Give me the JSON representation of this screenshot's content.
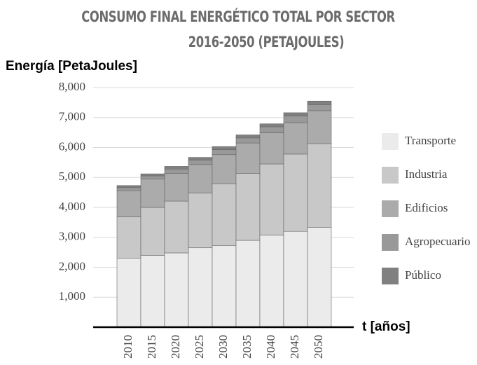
{
  "chart_data": {
    "type": "stacked_bar",
    "title": "CONSUMO FINAL ENERGÉTICO TOTAL POR SECTOR",
    "subtitle": "2016-2050 (PETAJOULES)",
    "y_label": "Energía [PetaJoules]",
    "x_label": "t [años]",
    "categories": [
      "2010",
      "2015",
      "2020",
      "2025",
      "2030",
      "2035",
      "2040",
      "2045",
      "2050"
    ],
    "series": [
      {
        "name": "Transporte",
        "color": "#ebebeb",
        "values": [
          2300,
          2400,
          2480,
          2650,
          2730,
          2900,
          3070,
          3200,
          3330
        ]
      },
      {
        "name": "Industria",
        "color": "#c8c8c8",
        "values": [
          1380,
          1600,
          1730,
          1830,
          2050,
          2230,
          2380,
          2580,
          2800
        ]
      },
      {
        "name": "Edificios",
        "color": "#ababab",
        "values": [
          880,
          950,
          920,
          950,
          980,
          1020,
          1040,
          1050,
          1100
        ]
      },
      {
        "name": "Agropecuario",
        "color": "#999999",
        "values": [
          100,
          100,
          150,
          150,
          170,
          170,
          200,
          220,
          200
        ]
      },
      {
        "name": "Público",
        "color": "#808080",
        "values": [
          70,
          70,
          90,
          90,
          100,
          100,
          100,
          110,
          120
        ]
      }
    ],
    "ylim": [
      0,
      8000
    ],
    "yticks": [
      {
        "value": 1000,
        "label": "1,000"
      },
      {
        "value": 2000,
        "label": "2,000"
      },
      {
        "value": 3000,
        "label": "3,000"
      },
      {
        "value": 4000,
        "label": "4,000"
      },
      {
        "value": 5000,
        "label": "5,000"
      },
      {
        "value": 6000,
        "label": "6,000"
      },
      {
        "value": 7000,
        "label": "7,000"
      },
      {
        "value": 8000,
        "label": "8,000"
      }
    ],
    "grid": true,
    "legend": "right"
  }
}
